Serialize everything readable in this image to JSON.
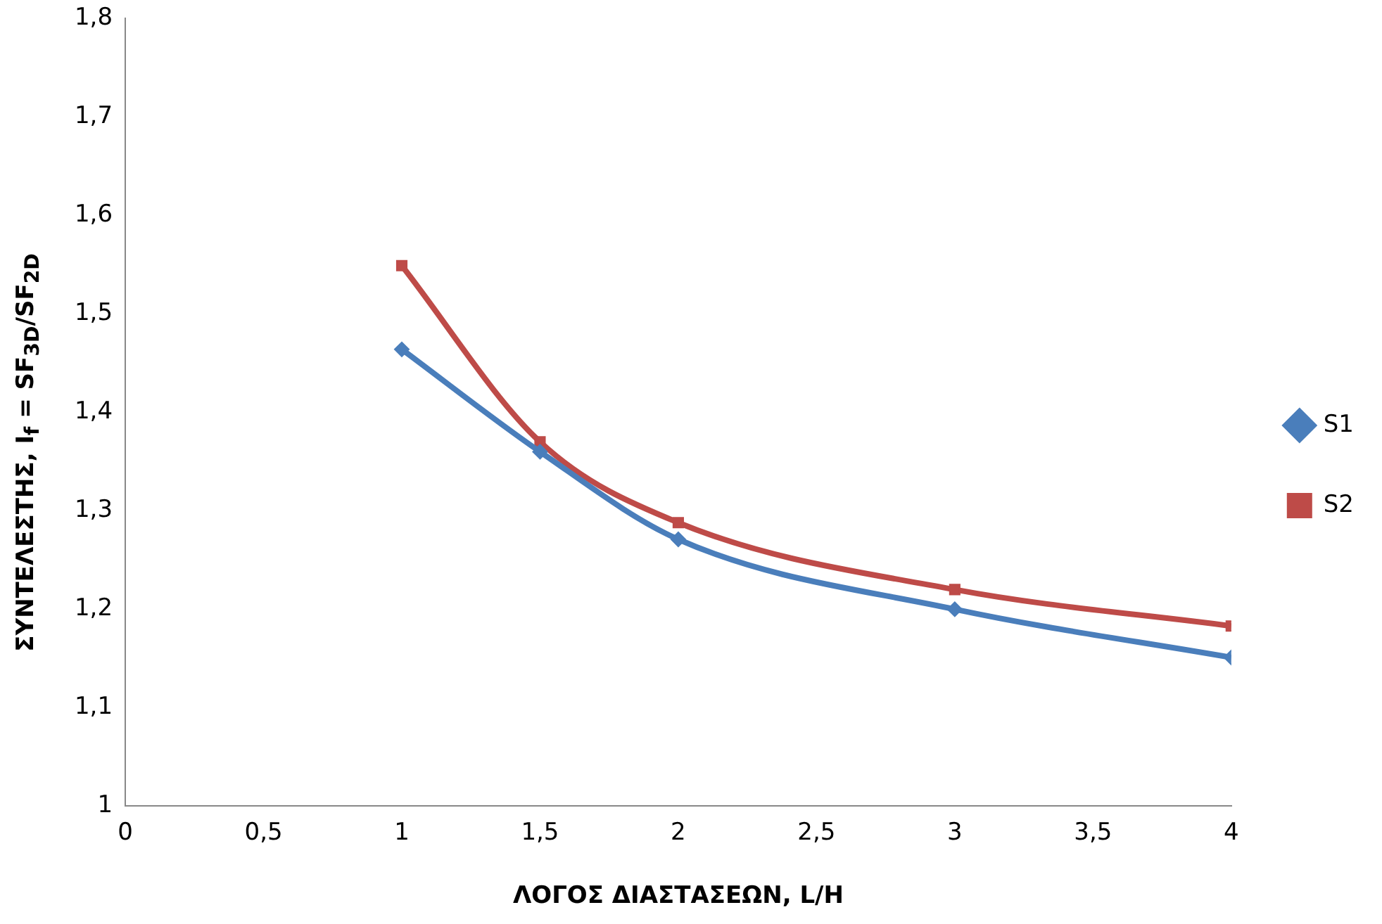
{
  "chart_data": {
    "type": "line",
    "xlabel": "ΛΟΓΟΣ ΔΙΑΣΤΑΣΕΩΝ, L/H",
    "ylabel": "ΣΥΝΤΕΛΕΣΤΗΣ, I$_{f}$ = SF$_{3D}$/SF$_{2D}$",
    "x": [
      1,
      1.5,
      2,
      3,
      4
    ],
    "series": [
      {
        "name": "S1",
        "color": "#4a7ebb",
        "values": [
          1.464,
          1.36,
          1.271,
          1.2,
          1.151
        ],
        "marker": "diamond"
      },
      {
        "name": "S2",
        "color": "#be4b48",
        "values": [
          1.549,
          1.37,
          1.288,
          1.22,
          1.183
        ],
        "marker": "square"
      }
    ],
    "xlim": [
      0,
      4
    ],
    "xticks": [
      0,
      {
        "value": 0.5,
        "label": "0,5"
      },
      1,
      {
        "value": 1.5,
        "label": "1,5"
      },
      2,
      {
        "value": 2.5,
        "label": "2,5"
      },
      3,
      {
        "value": 3.5,
        "label": "3,5"
      },
      4
    ],
    "ylim": [
      1,
      1.8
    ],
    "yticks": [
      1,
      {
        "value": 1.1,
        "label": "1,1"
      },
      {
        "value": 1.2,
        "label": "1,2"
      },
      {
        "value": 1.3,
        "label": "1,3"
      },
      {
        "value": 1.4,
        "label": "1,4"
      },
      {
        "value": 1.5,
        "label": "1,5"
      },
      {
        "value": 1.6,
        "label": "1,6"
      },
      {
        "value": 1.7,
        "label": "1,7"
      },
      {
        "value": 1.8,
        "label": "1,8"
      }
    ],
    "grid": false,
    "legend": "right",
    "line_style": "solid"
  }
}
